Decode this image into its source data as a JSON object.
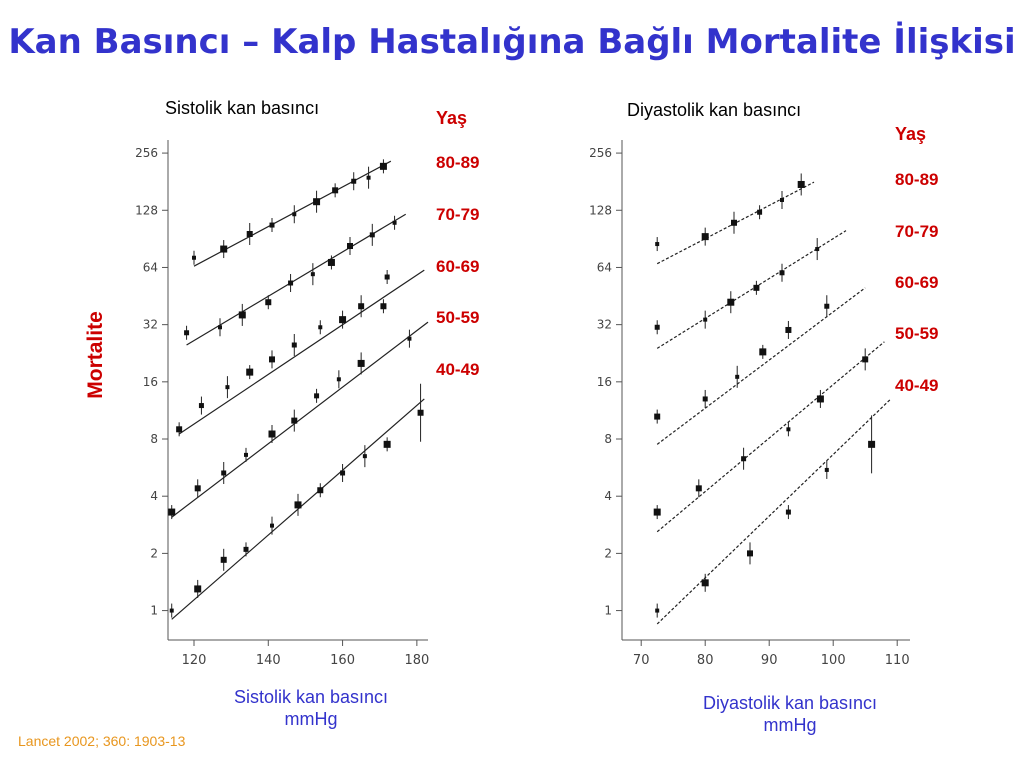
{
  "title": "Kan Basıncı – Kalp Hastalığına Bağlı Mortalite İlişkisi",
  "y_axis_label": "Mortalite",
  "citation": "Lancet 2002; 360: 1903-13",
  "chart_data": [
    {
      "type": "scatter",
      "title": "Sistolik kan basıncı",
      "xlabel_line1": "Sistolik kan basıncı",
      "xlabel_line2": "mmHg",
      "ylabel": "Mortalite",
      "y_scale": "log2",
      "xlim": [
        113,
        183
      ],
      "ylim": [
        0.7,
        300
      ],
      "x_ticks": [
        120,
        140,
        160,
        180
      ],
      "y_ticks": [
        1,
        2,
        4,
        8,
        16,
        32,
        64,
        128,
        256
      ],
      "legend_title": "Yaş",
      "series": [
        {
          "name": "80-89",
          "x": [
            120,
            128,
            135,
            141,
            147,
            153,
            158,
            163,
            167,
            171
          ],
          "y": [
            72,
            80,
            96,
            107,
            122,
            142,
            163,
            182,
            190,
            218
          ],
          "fit": {
            "x": [
              120,
              173
            ],
            "y": [
              65,
              232
            ]
          }
        },
        {
          "name": "70-79",
          "x": [
            118,
            127,
            133,
            140,
            146,
            152,
            157,
            162,
            168,
            174
          ],
          "y": [
            29,
            31,
            36,
            42,
            53,
            59,
            68,
            83,
            95,
            110
          ],
          "fit": {
            "x": [
              118,
              177
            ],
            "y": [
              25,
              122
            ]
          }
        },
        {
          "name": "60-69",
          "x": [
            116,
            122,
            129,
            135,
            141,
            147,
            154,
            160,
            165,
            172,
            178
          ],
          "y": [
            9,
            12,
            15,
            18,
            21,
            25,
            31,
            34,
            40,
            57,
            27
          ],
          "fit": {
            "x": [
              116,
              182
            ],
            "y": [
              8.5,
              62
            ]
          }
        },
        {
          "name": "50-59",
          "x": [
            114,
            121,
            128,
            134,
            141,
            147,
            153,
            159,
            165,
            171
          ],
          "y": [
            3.3,
            4.4,
            5.3,
            6.6,
            8.5,
            10,
            13.5,
            16.5,
            20,
            40
          ],
          "fit": {
            "x": [
              114,
              183
            ],
            "y": [
              3.1,
              33
            ]
          }
        },
        {
          "name": "40-49",
          "x": [
            114,
            121,
            128,
            134,
            141,
            148,
            154,
            160,
            166,
            172,
            181
          ],
          "y": [
            1.0,
            1.3,
            1.85,
            2.1,
            2.8,
            3.6,
            4.3,
            5.3,
            6.5,
            7.5,
            11
          ],
          "fit": {
            "x": [
              114,
              182
            ],
            "y": [
              0.9,
              13
            ]
          }
        }
      ]
    },
    {
      "type": "scatter",
      "title": "Diyastolik kan basıncı",
      "xlabel_line1": "Diyastolik kan basıncı",
      "xlabel_line2": "mmHg",
      "y_scale": "log2",
      "xlim": [
        67,
        112
      ],
      "ylim": [
        0.7,
        300
      ],
      "x_ticks": [
        70,
        80,
        90,
        100,
        110
      ],
      "y_ticks": [
        1,
        2,
        4,
        8,
        16,
        32,
        64,
        128,
        256
      ],
      "legend_title": "Yaş",
      "series": [
        {
          "name": "80-89",
          "x": [
            72.5,
            80,
            84.5,
            88.5,
            92,
            95
          ],
          "y": [
            85,
            93,
            110,
            125,
            145,
            175
          ],
          "fit": {
            "x": [
              72.5,
              97
            ],
            "y": [
              67,
              180
            ]
          }
        },
        {
          "name": "70-79",
          "x": [
            72.5,
            80,
            84,
            88,
            92,
            97.5
          ],
          "y": [
            31,
            34,
            42,
            50,
            60,
            80
          ],
          "fit": {
            "x": [
              72.5,
              102
            ],
            "y": [
              24,
              100
            ]
          }
        },
        {
          "name": "60-69",
          "x": [
            72.5,
            80,
            85,
            89,
            93,
            99
          ],
          "y": [
            10.5,
            13,
            17,
            23,
            30,
            40
          ],
          "fit": {
            "x": [
              72.5,
              105
            ],
            "y": [
              7.5,
              50
            ]
          }
        },
        {
          "name": "50-59",
          "x": [
            72.5,
            79,
            86,
            93,
            98,
            105
          ],
          "y": [
            3.3,
            4.4,
            6.3,
            9,
            13,
            21
          ],
          "fit": {
            "x": [
              72.5,
              108
            ],
            "y": [
              2.6,
              26
            ]
          }
        },
        {
          "name": "40-49",
          "x": [
            72.5,
            80,
            87,
            93,
            99,
            106
          ],
          "y": [
            1.0,
            1.4,
            2.0,
            3.3,
            5.5,
            7.5
          ],
          "fit": {
            "x": [
              72.5,
              109
            ],
            "y": [
              0.85,
              13
            ]
          }
        }
      ]
    }
  ]
}
